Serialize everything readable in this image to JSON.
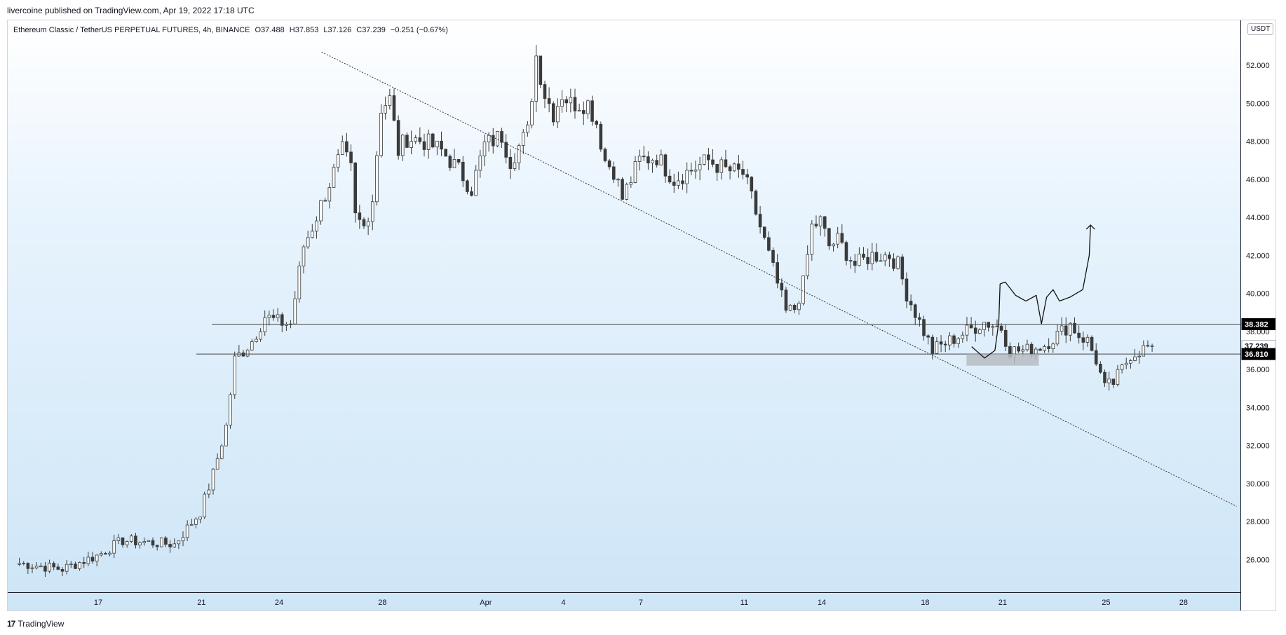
{
  "header": {
    "publisher_line": "livercoine published on TradingView.com, Apr 19, 2022 17:18 UTC"
  },
  "legend": {
    "symbol": "Ethereum Classic / TetherUS PERPETUAL FUTURES, 4h, BINANCE",
    "open": "O37.488",
    "high": "H37.853",
    "low": "L37.126",
    "close": "C37.239",
    "change": "−0.251 (−0.67%)"
  },
  "currency_button": "USDT",
  "footer": {
    "brand_logo": "17",
    "brand_name": "TradingView"
  },
  "colors": {
    "bull_body": "#ffffff",
    "bear_body": "#3a3a3a",
    "wick": "#3a3a3a",
    "label_bg": "#000000",
    "label_text": "#ffffff",
    "zone": "#b7bcc2"
  },
  "chart_data": {
    "type": "candlestick",
    "timeframe": "4h",
    "ylim": [
      24.5,
      54
    ],
    "x_range": [
      "Mar 14",
      "Apr 30"
    ],
    "y_ticks": [
      "26.000",
      "28.000",
      "30.000",
      "32.000",
      "34.000",
      "36.000",
      "38.000",
      "40.000",
      "42.000",
      "44.000",
      "46.000",
      "48.000",
      "50.000",
      "52.000"
    ],
    "y_tick_values": [
      26,
      28,
      30,
      32,
      34,
      36,
      38,
      40,
      42,
      44,
      46,
      48,
      50,
      52
    ],
    "x_ticks": [
      {
        "label": "17",
        "day": 17
      },
      {
        "label": "21",
        "day": 21
      },
      {
        "label": "24",
        "day": 24
      },
      {
        "label": "28",
        "day": 28
      },
      {
        "label": "Apr",
        "day": 32
      },
      {
        "label": "4",
        "day": 35
      },
      {
        "label": "7",
        "day": 38
      },
      {
        "label": "11",
        "day": 42
      },
      {
        "label": "14",
        "day": 45
      },
      {
        "label": "18",
        "day": 49
      },
      {
        "label": "21",
        "day": 52
      },
      {
        "label": "25",
        "day": 56
      },
      {
        "label": "28",
        "day": 59
      }
    ],
    "candles_start_day": 13.95,
    "candles_per_day": 6,
    "price_path": [
      [
        0,
        25.8
      ],
      [
        10,
        25.5
      ],
      [
        18,
        26.2
      ],
      [
        24,
        27.0
      ],
      [
        30,
        26.9
      ],
      [
        36,
        26.8
      ],
      [
        42,
        28.5
      ],
      [
        45,
        30.5
      ],
      [
        48,
        33.0
      ],
      [
        50,
        36.5
      ],
      [
        54,
        37.5
      ],
      [
        57,
        38.8
      ],
      [
        60,
        38.5
      ],
      [
        63,
        38.4
      ],
      [
        66,
        42.5
      ],
      [
        68,
        43.5
      ],
      [
        72,
        45.8
      ],
      [
        75,
        47.5
      ],
      [
        77,
        46.5
      ],
      [
        78,
        44.0
      ],
      [
        80,
        43.5
      ],
      [
        82,
        45.0
      ],
      [
        84,
        49.8
      ],
      [
        86,
        50.2
      ],
      [
        88,
        47.5
      ],
      [
        90,
        48.2
      ],
      [
        94,
        48.0
      ],
      [
        98,
        47.5
      ],
      [
        102,
        46.5
      ],
      [
        105,
        45.5
      ],
      [
        108,
        47.8
      ],
      [
        112,
        48.3
      ],
      [
        114,
        47.0
      ],
      [
        118,
        48.5
      ],
      [
        120,
        52.5
      ],
      [
        122,
        50.5
      ],
      [
        124,
        49.5
      ],
      [
        126,
        50.5
      ],
      [
        128,
        50.0
      ],
      [
        132,
        50.0
      ],
      [
        134,
        49.0
      ],
      [
        136,
        47.0
      ],
      [
        138,
        46.5
      ],
      [
        140,
        45.0
      ],
      [
        142,
        46.0
      ],
      [
        144,
        47.0
      ],
      [
        148,
        47.2
      ],
      [
        152,
        46.0
      ],
      [
        156,
        46.5
      ],
      [
        160,
        47.0
      ],
      [
        164,
        46.5
      ],
      [
        168,
        46.3
      ],
      [
        170,
        45.0
      ],
      [
        172,
        43.5
      ],
      [
        174,
        42.0
      ],
      [
        176,
        40.5
      ],
      [
        178,
        39.0
      ],
      [
        180,
        39.2
      ],
      [
        182,
        40.5
      ],
      [
        184,
        43.5
      ],
      [
        186,
        43.8
      ],
      [
        188,
        42.5
      ],
      [
        190,
        42.8
      ],
      [
        194,
        41.5
      ],
      [
        198,
        42.0
      ],
      [
        202,
        42.0
      ],
      [
        204,
        41.5
      ],
      [
        206,
        40.0
      ],
      [
        208,
        39.0
      ],
      [
        210,
        38.0
      ],
      [
        212,
        37.0
      ],
      [
        216,
        37.5
      ],
      [
        220,
        38.0
      ],
      [
        224,
        38.5
      ],
      [
        228,
        38.2
      ],
      [
        230,
        37.0
      ],
      [
        234,
        37.0
      ],
      [
        238,
        37.3
      ],
      [
        242,
        38.0
      ],
      [
        244,
        38.4
      ],
      [
        246,
        37.8
      ],
      [
        248,
        37.5
      ],
      [
        250,
        36.5
      ],
      [
        252,
        35.0
      ],
      [
        254,
        35.3
      ],
      [
        256,
        36.0
      ],
      [
        258,
        36.8
      ],
      [
        260,
        37.0
      ],
      [
        263,
        37.24
      ]
    ],
    "series_overlays": [
      {
        "kind": "trendline",
        "from": [
          25.65,
          52.7
        ],
        "to": [
          61.05,
          28.8
        ],
        "style": "dotted"
      },
      {
        "kind": "horizontal",
        "value": 38.382,
        "from_day": 21.4
      },
      {
        "kind": "horizontal",
        "value": 36.81,
        "from_day": 20.8
      },
      {
        "kind": "zone",
        "x": [
          50.6,
          53.4
        ],
        "y": [
          36.2,
          36.81
        ]
      },
      {
        "kind": "projection",
        "points": [
          [
            50.8,
            37.2
          ],
          [
            51.3,
            36.6
          ],
          [
            51.7,
            37.0
          ],
          [
            51.85,
            38.5
          ],
          [
            51.9,
            40.5
          ],
          [
            52.1,
            40.6
          ],
          [
            52.5,
            39.9
          ],
          [
            52.9,
            39.6
          ],
          [
            53.3,
            39.9
          ],
          [
            53.5,
            38.4
          ],
          [
            53.7,
            39.8
          ],
          [
            53.95,
            40.2
          ],
          [
            54.2,
            39.6
          ],
          [
            54.6,
            39.8
          ],
          [
            55.1,
            40.2
          ],
          [
            55.35,
            42.0
          ],
          [
            55.4,
            43.6
          ]
        ],
        "arrow": true
      }
    ],
    "price_labels": [
      {
        "value": 38.382,
        "text": "38.382",
        "style": "dark"
      },
      {
        "value": 37.239,
        "text": "37.239",
        "style": "light"
      },
      {
        "value": 36.81,
        "text": "36.810",
        "style": "dark"
      }
    ]
  }
}
